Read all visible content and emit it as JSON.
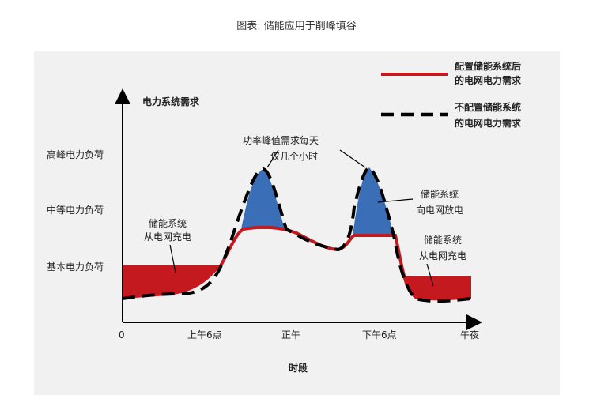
{
  "title": "图表: 储能应用于削峰填谷",
  "y_axis_label": "电力系统需求",
  "x_axis_label": "时段",
  "y_levels": [
    "高峰电力负荷",
    "中等电力负荷",
    "基本电力负荷"
  ],
  "x_ticks": [
    "0",
    "上午6点",
    "正午",
    "下午6点",
    "午夜"
  ],
  "legend": {
    "solid_line": "配置储能系统后的电网电力需求",
    "solid_line_lines": [
      "配置储能系统后",
      "的电网电力需求"
    ],
    "dashed_line": "不配置储能系统的电网电力需求",
    "dashed_line_lines": [
      "不配置储能系统",
      "的电网电力需求"
    ]
  },
  "annotations": {
    "peak_note": [
      "功率峰值需求每天",
      "仅几个小时"
    ],
    "charge_left": [
      "储能系统",
      "从电网充电"
    ],
    "discharge": [
      "储能系统",
      "向电网放电"
    ],
    "charge_right": [
      "储能系统",
      "从电网充电"
    ]
  },
  "colors": {
    "charge_fill": "#c4191f",
    "discharge_fill": "#3a6fb8",
    "solid_line": "#c4191f",
    "dashed_line": "#000000",
    "panel_bg": "#f1f1f1"
  }
}
